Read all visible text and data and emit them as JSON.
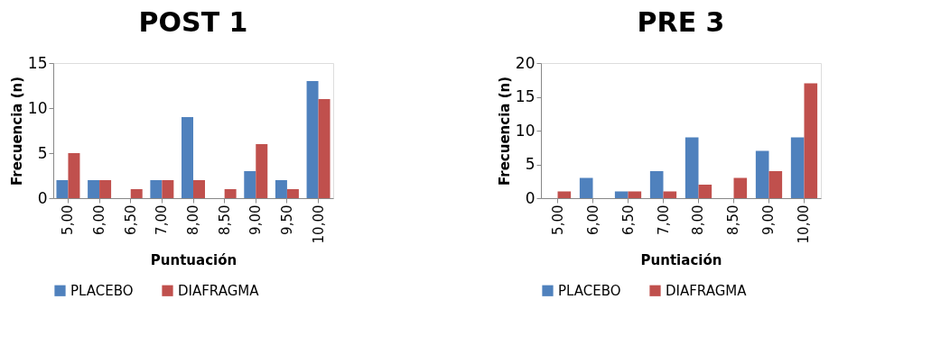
{
  "chart_data": [
    {
      "type": "bar",
      "title": "POST 1",
      "xlabel": "Puntuación",
      "ylabel": "Frecuencia (n)",
      "categories": [
        "5,00",
        "6,00",
        "6,50",
        "7,00",
        "8,00",
        "8,50",
        "9,00",
        "9,50",
        "10,00"
      ],
      "series": [
        {
          "name": "PLACEBO",
          "color": "#4f81bd",
          "values": [
            2,
            2,
            0,
            2,
            9,
            0,
            3,
            2,
            13
          ]
        },
        {
          "name": "DIAFRAGMA",
          "color": "#c0504d",
          "values": [
            5,
            2,
            1,
            2,
            2,
            1,
            6,
            1,
            11
          ]
        }
      ],
      "ylim": [
        0,
        15
      ],
      "yticks": [
        0,
        5,
        10,
        15
      ],
      "grid": false,
      "legend": "bottom"
    },
    {
      "type": "bar",
      "title": "PRE 3",
      "xlabel": "Puntiación",
      "ylabel": "Frecuencia (n)",
      "categories": [
        "5,00",
        "6,00",
        "6,50",
        "7,00",
        "8,00",
        "8,50",
        "9,00",
        "10,00"
      ],
      "series": [
        {
          "name": "PLACEBO",
          "color": "#4f81bd",
          "values": [
            0,
            3,
            1,
            4,
            9,
            0,
            7,
            9
          ]
        },
        {
          "name": "DIAFRAGMA",
          "color": "#c0504d",
          "values": [
            1,
            0,
            1,
            1,
            2,
            3,
            4,
            17
          ]
        }
      ],
      "ylim": [
        0,
        20
      ],
      "yticks": [
        0,
        5,
        10,
        15,
        20
      ],
      "grid": false,
      "legend": "bottom"
    }
  ]
}
